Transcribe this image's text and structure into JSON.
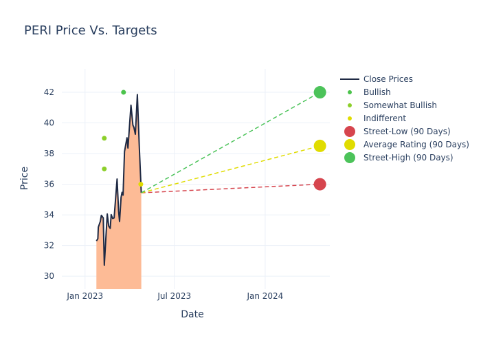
{
  "chart_data": {
    "type": "line",
    "title": "PERI Price Vs. Targets",
    "xlabel": "Date",
    "ylabel": "Price",
    "xlim": [
      "2022-11-15",
      "2024-05-11"
    ],
    "ylim": [
      29.15,
      43.53
    ],
    "x_ticks": [
      {
        "date": "2023-01-01",
        "label": "Jan 2023"
      },
      {
        "date": "2023-07-01",
        "label": "Jul 2023"
      },
      {
        "date": "2024-01-01",
        "label": "Jan 2024"
      }
    ],
    "y_ticks": [
      30,
      32,
      34,
      36,
      38,
      40,
      42
    ],
    "grid": true,
    "legend_position": "top-right",
    "close_prices": {
      "name": "Close Prices",
      "color": "#1f2a44",
      "fill_color": "#fdbb96",
      "points": [
        [
          "2023-01-24",
          32.29
        ],
        [
          "2023-01-27",
          32.45
        ],
        [
          "2023-01-28",
          33.2
        ],
        [
          "2023-02-01",
          33.57
        ],
        [
          "2023-02-03",
          33.97
        ],
        [
          "2023-02-07",
          33.8
        ],
        [
          "2023-02-09",
          30.72
        ],
        [
          "2023-02-15",
          34.06
        ],
        [
          "2023-02-18",
          33.27
        ],
        [
          "2023-02-21",
          33.12
        ],
        [
          "2023-02-23",
          34.01
        ],
        [
          "2023-02-26",
          33.76
        ],
        [
          "2023-03-01",
          33.8
        ],
        [
          "2023-03-07",
          36.34
        ],
        [
          "2023-03-10",
          34.24
        ],
        [
          "2023-03-12",
          33.57
        ],
        [
          "2023-03-15",
          35.14
        ],
        [
          "2023-03-17",
          35.47
        ],
        [
          "2023-03-19",
          35.29
        ],
        [
          "2023-03-22",
          38.13
        ],
        [
          "2023-03-27",
          39.03
        ],
        [
          "2023-03-29",
          38.36
        ],
        [
          "2023-04-04",
          41.16
        ],
        [
          "2023-04-08",
          39.86
        ],
        [
          "2023-04-10",
          39.7
        ],
        [
          "2023-04-13",
          39.26
        ],
        [
          "2023-04-17",
          41.85
        ],
        [
          "2023-04-21",
          38.36
        ],
        [
          "2023-04-25",
          35.44
        ]
      ]
    },
    "ratings": [
      {
        "name": "Bullish",
        "color": "#4cc34c",
        "points": [
          [
            "2023-03-20",
            42
          ]
        ]
      },
      {
        "name": "Somewhat Bullish",
        "color": "#8ccf2a",
        "points": [
          [
            "2023-02-09",
            39
          ],
          [
            "2023-02-09",
            37
          ]
        ]
      },
      {
        "name": "Indifferent",
        "color": "#e0dc00",
        "points": [
          [
            "2023-04-24",
            36
          ]
        ]
      }
    ],
    "targets": [
      {
        "name": "Street-Low (90 Days)",
        "color": "#d6454e",
        "date": "2024-04-21",
        "value": 36
      },
      {
        "name": "Average Rating (90 Days)",
        "color": "#e0dc00",
        "date": "2024-04-21",
        "value": 38.5
      },
      {
        "name": "Street-High (90 Days)",
        "color": "#4cc35a",
        "date": "2024-04-21",
        "value": 42
      }
    ]
  }
}
